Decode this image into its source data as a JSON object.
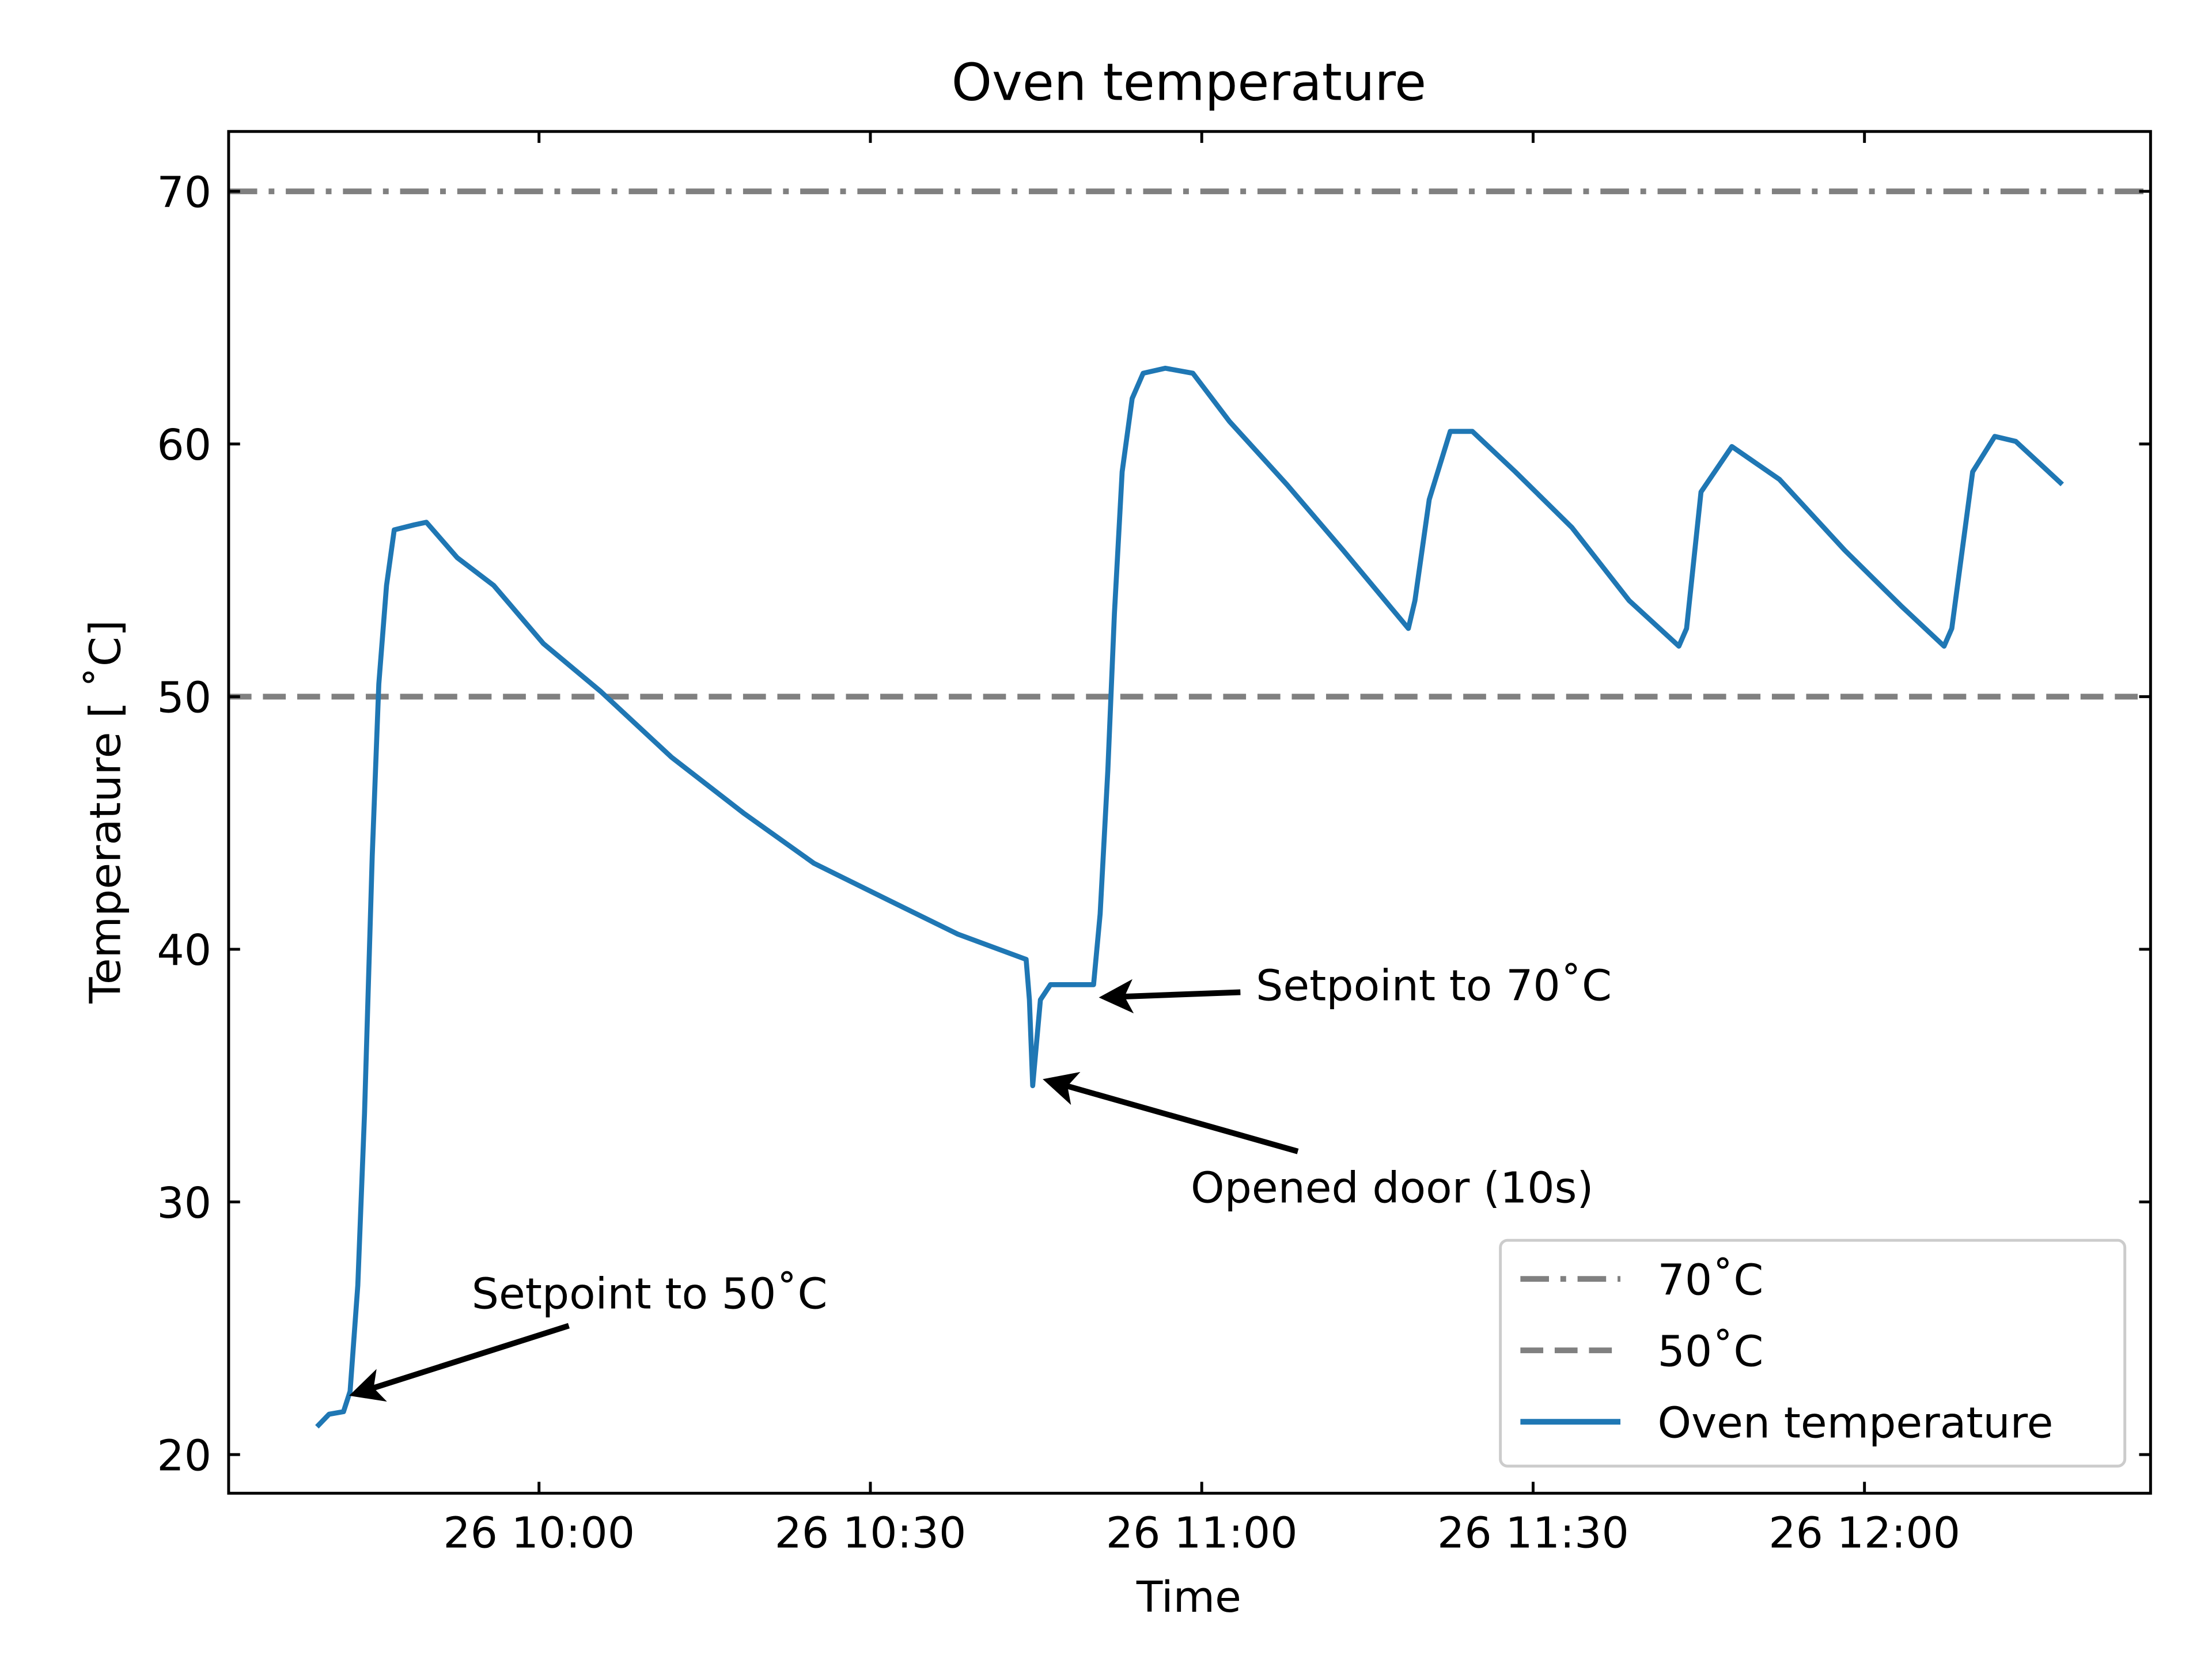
{
  "chart_data": {
    "type": "line",
    "title": "Oven temperature",
    "xlabel": "Time",
    "ylabel": "Temperature [$^\\circ$C]",
    "ylabel_display": "Temperature [ ˚C]",
    "x_units": "minutes relative to 26 10:00",
    "xlim": [
      -28.1,
      145.9
    ],
    "ylim": [
      18.47,
      72.37
    ],
    "xticks": [
      {
        "value": 0,
        "label": "26 10:00"
      },
      {
        "value": 30,
        "label": "26 10:30"
      },
      {
        "value": 60,
        "label": "26 11:00"
      },
      {
        "value": 90,
        "label": "26 11:30"
      },
      {
        "value": 120,
        "label": "26 12:00"
      }
    ],
    "yticks": [
      {
        "value": 20,
        "label": "20"
      },
      {
        "value": 30,
        "label": "30"
      },
      {
        "value": 40,
        "label": "40"
      },
      {
        "value": 50,
        "label": "50"
      },
      {
        "value": 60,
        "label": "60"
      },
      {
        "value": 70,
        "label": "70"
      }
    ],
    "grid": false,
    "legend_position": "lower-right",
    "hlines": [
      {
        "name": "70˚C",
        "y": 70,
        "style": "dashdot",
        "color": "#808080"
      },
      {
        "name": "50˚C",
        "y": 50,
        "style": "dashed",
        "color": "#808080"
      }
    ],
    "series": [
      {
        "name": "Oven temperature",
        "color": "#1f77b4",
        "x": [
          -20.1,
          -19.0,
          -17.7,
          -17.1,
          -16.4,
          -15.8,
          -15.1,
          -14.5,
          -13.8,
          -13.1,
          -11.3,
          -10.2,
          -7.4,
          -4.1,
          0.4,
          5.6,
          12.0,
          18.5,
          24.9,
          31.4,
          37.9,
          44.1,
          44.4,
          44.7,
          45.4,
          46.3,
          49.5,
          50.2,
          50.8,
          51.5,
          52.1,
          52.8,
          53.7,
          54.7,
          56.7,
          59.2,
          62.5,
          67.7,
          72.8,
          78.7,
          79.3,
          80.6,
          82.5,
          84.5,
          88.4,
          93.5,
          98.7,
          103.2,
          103.9,
          105.2,
          108.0,
          112.3,
          118.2,
          123.3,
          127.2,
          127.9,
          129.8,
          131.8,
          133.7,
          137.9
        ],
        "y": [
          21.1,
          21.6,
          21.7,
          22.5,
          26.7,
          33.5,
          43.7,
          50.5,
          54.4,
          56.6,
          56.8,
          56.9,
          55.5,
          54.4,
          52.1,
          50.2,
          47.6,
          45.4,
          43.4,
          42.0,
          40.6,
          39.6,
          38.0,
          34.6,
          38.0,
          38.6,
          38.6,
          38.6,
          41.4,
          47.1,
          53.3,
          58.9,
          61.8,
          62.8,
          63.0,
          62.8,
          60.9,
          58.4,
          55.8,
          52.7,
          53.8,
          57.8,
          60.5,
          60.5,
          58.9,
          56.7,
          53.8,
          52.0,
          52.7,
          58.1,
          59.9,
          58.6,
          55.8,
          53.6,
          52.0,
          52.7,
          58.9,
          60.3,
          60.1,
          58.4
        ]
      }
    ],
    "annotations": [
      {
        "text": "Setpoint to 50˚C",
        "xy": [
          -16.7,
          22.4
        ],
        "xytext": [
          -6.1,
          26.4
        ],
        "tail": [
          2.7,
          25.1
        ]
      },
      {
        "text": "Setpoint to 70˚C",
        "xy": [
          51.2,
          38.1
        ],
        "xytext": [
          64.9,
          38.6
        ],
        "tail": [
          63.5,
          38.3
        ]
      },
      {
        "text": "Opened door (10s)",
        "xy": [
          46.1,
          34.8
        ],
        "xytext": [
          59.0,
          30.6
        ],
        "tail": [
          68.7,
          32.0
        ]
      }
    ]
  }
}
